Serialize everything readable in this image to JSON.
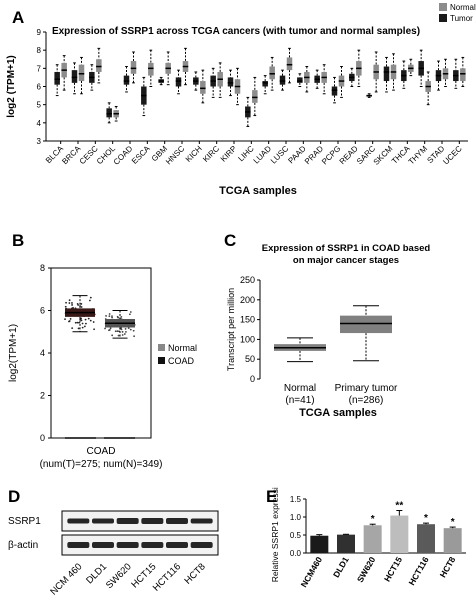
{
  "panels": {
    "A": "A",
    "B": "B",
    "C": "C",
    "D": "D",
    "E": "E"
  },
  "chart_data": [
    {
      "panel": "A",
      "type": "box",
      "title": "Expression of SSRP1 across TCGA cancers (with tumor and normal samples)",
      "xlabel": "TCGA samples",
      "ylabel": "log2 (TPM+1)",
      "ylim": [
        3,
        9
      ],
      "yticks": [
        3,
        4,
        5,
        6,
        7,
        8,
        9
      ],
      "legend": {
        "placement": "top-right",
        "entries": [
          {
            "name": "Normal",
            "color": "#8c8c8c"
          },
          {
            "name": "Tumor",
            "color": "#1a1a1a"
          }
        ]
      },
      "categories": [
        "BLCA",
        "BRCA",
        "CESC",
        "CHOL",
        "COAD",
        "ESCA",
        "GBM",
        "HNSC",
        "KICH",
        "KIRC",
        "KIRP",
        "LIHC",
        "LUAD",
        "LUSC",
        "PAAD",
        "PRAD",
        "PCPG",
        "READ",
        "SARC",
        "SKCM",
        "THCA",
        "THYM",
        "STAD",
        "UCEC"
      ],
      "boxes": [
        {
          "cat": "BLCA",
          "group": "Tumor",
          "median": 6.4,
          "q1": 6.1,
          "q3": 6.8,
          "min": 5.5,
          "max": 7.2
        },
        {
          "cat": "BLCA",
          "group": "Normal",
          "median": 6.9,
          "q1": 6.5,
          "q3": 7.3,
          "min": 5.8,
          "max": 7.7
        },
        {
          "cat": "BRCA",
          "group": "Tumor",
          "median": 6.5,
          "q1": 6.2,
          "q3": 6.9,
          "min": 5.6,
          "max": 7.3
        },
        {
          "cat": "BRCA",
          "group": "Normal",
          "median": 6.7,
          "q1": 6.3,
          "q3": 7.2,
          "min": 5.6,
          "max": 7.6
        },
        {
          "cat": "CESC",
          "group": "Tumor",
          "median": 6.5,
          "q1": 6.2,
          "q3": 6.8,
          "min": 5.8,
          "max": 7.2
        },
        {
          "cat": "CESC",
          "group": "Normal",
          "median": 7.1,
          "q1": 6.8,
          "q3": 7.5,
          "min": 6.2,
          "max": 8.1
        },
        {
          "cat": "CHOL",
          "group": "Tumor",
          "median": 4.5,
          "q1": 4.3,
          "q3": 4.8,
          "min": 4.0,
          "max": 5.1
        },
        {
          "cat": "CHOL",
          "group": "Normal",
          "median": 4.5,
          "q1": 4.3,
          "q3": 4.7,
          "min": 4.1,
          "max": 4.9
        },
        {
          "cat": "COAD",
          "group": "Tumor",
          "median": 6.3,
          "q1": 6.1,
          "q3": 6.6,
          "min": 5.7,
          "max": 7.1
        },
        {
          "cat": "COAD",
          "group": "Normal",
          "median": 7.0,
          "q1": 6.7,
          "q3": 7.4,
          "min": 6.2,
          "max": 7.9
        },
        {
          "cat": "ESCA",
          "group": "Tumor",
          "median": 5.5,
          "q1": 5.0,
          "q3": 6.0,
          "min": 4.4,
          "max": 6.5
        },
        {
          "cat": "ESCA",
          "group": "Normal",
          "median": 7.0,
          "q1": 6.6,
          "q3": 7.3,
          "min": 6.0,
          "max": 8.0
        },
        {
          "cat": "GBM",
          "group": "Tumor",
          "median": 6.3,
          "q1": 6.2,
          "q3": 6.4,
          "min": 6.1,
          "max": 6.5
        },
        {
          "cat": "GBM",
          "group": "Normal",
          "median": 7.0,
          "q1": 6.7,
          "q3": 7.3,
          "min": 6.1,
          "max": 7.9
        },
        {
          "cat": "HNSC",
          "group": "Tumor",
          "median": 6.3,
          "q1": 6.0,
          "q3": 6.5,
          "min": 5.6,
          "max": 6.9
        },
        {
          "cat": "HNSC",
          "group": "Normal",
          "median": 7.1,
          "q1": 6.8,
          "q3": 7.4,
          "min": 6.1,
          "max": 8.1
        },
        {
          "cat": "KICH",
          "group": "Tumor",
          "median": 6.3,
          "q1": 6.1,
          "q3": 6.5,
          "min": 5.8,
          "max": 6.8
        },
        {
          "cat": "KICH",
          "group": "Normal",
          "median": 5.9,
          "q1": 5.6,
          "q3": 6.3,
          "min": 5.1,
          "max": 6.9
        },
        {
          "cat": "KIRC",
          "group": "Tumor",
          "median": 6.3,
          "q1": 6.0,
          "q3": 6.6,
          "min": 5.4,
          "max": 7.0
        },
        {
          "cat": "KIRC",
          "group": "Normal",
          "median": 6.4,
          "q1": 6.0,
          "q3": 6.8,
          "min": 5.4,
          "max": 7.3
        },
        {
          "cat": "KIRP",
          "group": "Tumor",
          "median": 6.2,
          "q1": 6.0,
          "q3": 6.5,
          "min": 5.5,
          "max": 6.9
        },
        {
          "cat": "KIRP",
          "group": "Normal",
          "median": 6.0,
          "q1": 5.6,
          "q3": 6.4,
          "min": 5.0,
          "max": 7.0
        },
        {
          "cat": "LIHC",
          "group": "Tumor",
          "median": 4.6,
          "q1": 4.3,
          "q3": 4.9,
          "min": 3.8,
          "max": 5.4
        },
        {
          "cat": "LIHC",
          "group": "Normal",
          "median": 5.4,
          "q1": 5.1,
          "q3": 5.8,
          "min": 4.4,
          "max": 6.5
        },
        {
          "cat": "LUAD",
          "group": "Tumor",
          "median": 6.2,
          "q1": 6.0,
          "q3": 6.3,
          "min": 5.6,
          "max": 6.6
        },
        {
          "cat": "LUAD",
          "group": "Normal",
          "median": 6.7,
          "q1": 6.4,
          "q3": 7.1,
          "min": 5.8,
          "max": 7.6
        },
        {
          "cat": "LUSC",
          "group": "Tumor",
          "median": 6.3,
          "q1": 6.1,
          "q3": 6.6,
          "min": 5.8,
          "max": 6.9
        },
        {
          "cat": "LUSC",
          "group": "Normal",
          "median": 7.2,
          "q1": 6.9,
          "q3": 7.6,
          "min": 6.2,
          "max": 8.1
        },
        {
          "cat": "PAAD",
          "group": "Tumor",
          "median": 6.3,
          "q1": 6.2,
          "q3": 6.5,
          "min": 6.0,
          "max": 6.7
        },
        {
          "cat": "PAAD",
          "group": "Normal",
          "median": 6.5,
          "q1": 6.2,
          "q3": 6.8,
          "min": 5.7,
          "max": 7.1
        },
        {
          "cat": "PRAD",
          "group": "Tumor",
          "median": 6.4,
          "q1": 6.2,
          "q3": 6.6,
          "min": 5.9,
          "max": 6.9
        },
        {
          "cat": "PRAD",
          "group": "Normal",
          "median": 6.5,
          "q1": 6.2,
          "q3": 6.8,
          "min": 5.6,
          "max": 7.2
        },
        {
          "cat": "PCPG",
          "group": "Tumor",
          "median": 5.8,
          "q1": 5.5,
          "q3": 6.0,
          "min": 5.1,
          "max": 6.5
        },
        {
          "cat": "PCPG",
          "group": "Normal",
          "median": 6.3,
          "q1": 6.0,
          "q3": 6.6,
          "min": 5.4,
          "max": 7.1
        },
        {
          "cat": "READ",
          "group": "Tumor",
          "median": 6.5,
          "q1": 6.3,
          "q3": 6.7,
          "min": 6.0,
          "max": 7.0
        },
        {
          "cat": "READ",
          "group": "Normal",
          "median": 7.0,
          "q1": 6.6,
          "q3": 7.4,
          "min": 6.0,
          "max": 8.0
        },
        {
          "cat": "SARC",
          "group": "Tumor",
          "median": 5.5,
          "q1": 5.5,
          "q3": 5.5,
          "min": 5.4,
          "max": 5.6
        },
        {
          "cat": "SARC",
          "group": "Normal",
          "median": 6.8,
          "q1": 6.4,
          "q3": 7.2,
          "min": 5.7,
          "max": 7.9
        },
        {
          "cat": "SKCM",
          "group": "Tumor",
          "median": 6.8,
          "q1": 6.3,
          "q3": 7.1,
          "min": 5.7,
          "max": 7.6
        },
        {
          "cat": "SKCM",
          "group": "Normal",
          "median": 6.8,
          "q1": 6.4,
          "q3": 7.2,
          "min": 5.8,
          "max": 7.8
        },
        {
          "cat": "THCA",
          "group": "Tumor",
          "median": 6.6,
          "q1": 6.3,
          "q3": 6.9,
          "min": 5.9,
          "max": 7.4
        },
        {
          "cat": "THCA",
          "group": "Normal",
          "median": 7.0,
          "q1": 6.8,
          "q3": 7.2,
          "min": 6.6,
          "max": 7.5
        },
        {
          "cat": "THYM",
          "group": "Tumor",
          "median": 7.0,
          "q1": 6.6,
          "q3": 7.4,
          "min": 6.0,
          "max": 8.0
        },
        {
          "cat": "THYM",
          "group": "Normal",
          "median": 6.0,
          "q1": 5.7,
          "q3": 6.3,
          "min": 5.0,
          "max": 6.8
        },
        {
          "cat": "STAD",
          "group": "Tumor",
          "median": 6.6,
          "q1": 6.3,
          "q3": 6.9,
          "min": 5.8,
          "max": 7.4
        },
        {
          "cat": "STAD",
          "group": "Normal",
          "median": 6.7,
          "q1": 6.4,
          "q3": 7.0,
          "min": 6.0,
          "max": 7.5
        },
        {
          "cat": "UCEC",
          "group": "Tumor",
          "median": 6.6,
          "q1": 6.3,
          "q3": 6.9,
          "min": 5.9,
          "max": 7.5
        },
        {
          "cat": "UCEC",
          "group": "Normal",
          "median": 6.7,
          "q1": 6.3,
          "q3": 7.0,
          "min": 6.0,
          "max": 7.6
        }
      ]
    },
    {
      "panel": "B",
      "type": "box",
      "ylabel": "log2(TPM+1)",
      "ylim": [
        0,
        8
      ],
      "yticks": [
        0,
        2,
        4,
        6,
        8
      ],
      "xlabel": "COAD",
      "footnote": "(num(T)=275; num(N)=349)",
      "legend": {
        "placement": "right",
        "entries": [
          {
            "name": "Normal",
            "color": "#888888"
          },
          {
            "name": "COAD",
            "color": "#111111"
          }
        ]
      },
      "boxes": [
        {
          "group": "COAD",
          "median": 5.9,
          "q1": 5.7,
          "q3": 6.1,
          "min": 5.0,
          "max": 6.7
        },
        {
          "group": "Normal",
          "median": 5.4,
          "q1": 5.2,
          "q3": 5.6,
          "min": 4.7,
          "max": 6.0
        }
      ]
    },
    {
      "panel": "C",
      "type": "box",
      "title": "Expression of SSRP1 in COAD based on major cancer stages",
      "xlabel": "TCGA samples",
      "ylabel": "Transcript per million",
      "ylim": [
        0,
        250
      ],
      "yticks": [
        0,
        50,
        100,
        150,
        200,
        250
      ],
      "categories": [
        "Normal\n(n=41)",
        "Primary tumor\n(n=286)"
      ],
      "boxes": [
        {
          "cat": "Normal",
          "median": 79,
          "q1": 71,
          "q3": 88,
          "min": 44,
          "max": 104
        },
        {
          "cat": "Primary tumor",
          "median": 140,
          "q1": 116,
          "q3": 160,
          "min": 46,
          "max": 185
        }
      ]
    },
    {
      "panel": "D",
      "type": "other",
      "rows": [
        "SSRP1",
        "β-actin"
      ],
      "lanes": [
        "NCM 460",
        "DLD1",
        "SW620",
        "HCT15",
        "HCT116",
        "HCT8"
      ]
    },
    {
      "panel": "E",
      "type": "bar",
      "ylabel": "Relative SSRP1 expression",
      "ylim": [
        0,
        1.5
      ],
      "yticks": [
        0.0,
        0.5,
        1.0,
        1.5
      ],
      "categories": [
        "NCM460",
        "DLD1",
        "SW620",
        "HCT15",
        "HCT116",
        "HCT8"
      ],
      "values": [
        0.48,
        0.51,
        0.77,
        1.04,
        0.8,
        0.69
      ],
      "errors": [
        0.03,
        0.01,
        0.03,
        0.14,
        0.03,
        0.03
      ],
      "significance": [
        "",
        "",
        "*",
        "**",
        "*",
        "*"
      ],
      "colors": [
        "#1a1a1a",
        "#303030",
        "#a6a6a6",
        "#bdbdbd",
        "#5a5a5a",
        "#9a9a9a"
      ]
    }
  ]
}
